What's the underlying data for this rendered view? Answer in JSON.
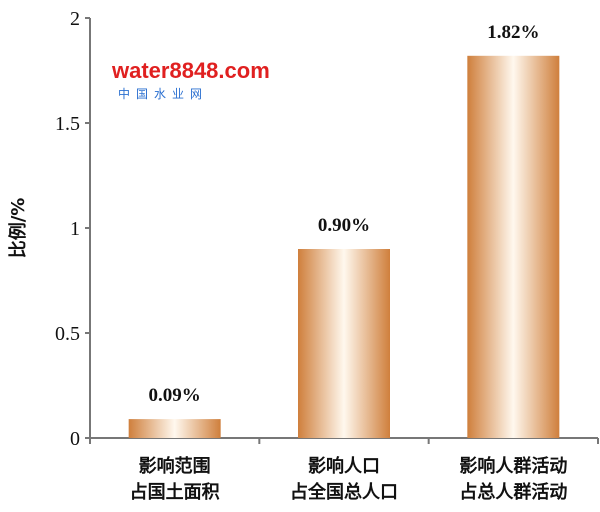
{
  "chart_data": {
    "type": "bar",
    "title": "",
    "xlabel": "",
    "ylabel": "比例/%",
    "ylim": [
      0,
      2
    ],
    "yticks": [
      "0",
      "0.5",
      "1",
      "1.5",
      "2"
    ],
    "categories": [
      [
        "影响范围",
        "占国土面积"
      ],
      [
        "影响人口",
        "占全国总人口"
      ],
      [
        "影响人群活动",
        "占总人群活动"
      ]
    ],
    "values": [
      0.09,
      0.9,
      1.82
    ],
    "data_labels": [
      "0.09%",
      "0.90%",
      "1.82%"
    ],
    "grid": false,
    "colors": {
      "bar_edge": "#cf7f3c",
      "bar_center": "#fff8ee",
      "axis": "#777777"
    }
  },
  "watermark": {
    "text": "water8848.com",
    "subtext": "中国水业网"
  }
}
